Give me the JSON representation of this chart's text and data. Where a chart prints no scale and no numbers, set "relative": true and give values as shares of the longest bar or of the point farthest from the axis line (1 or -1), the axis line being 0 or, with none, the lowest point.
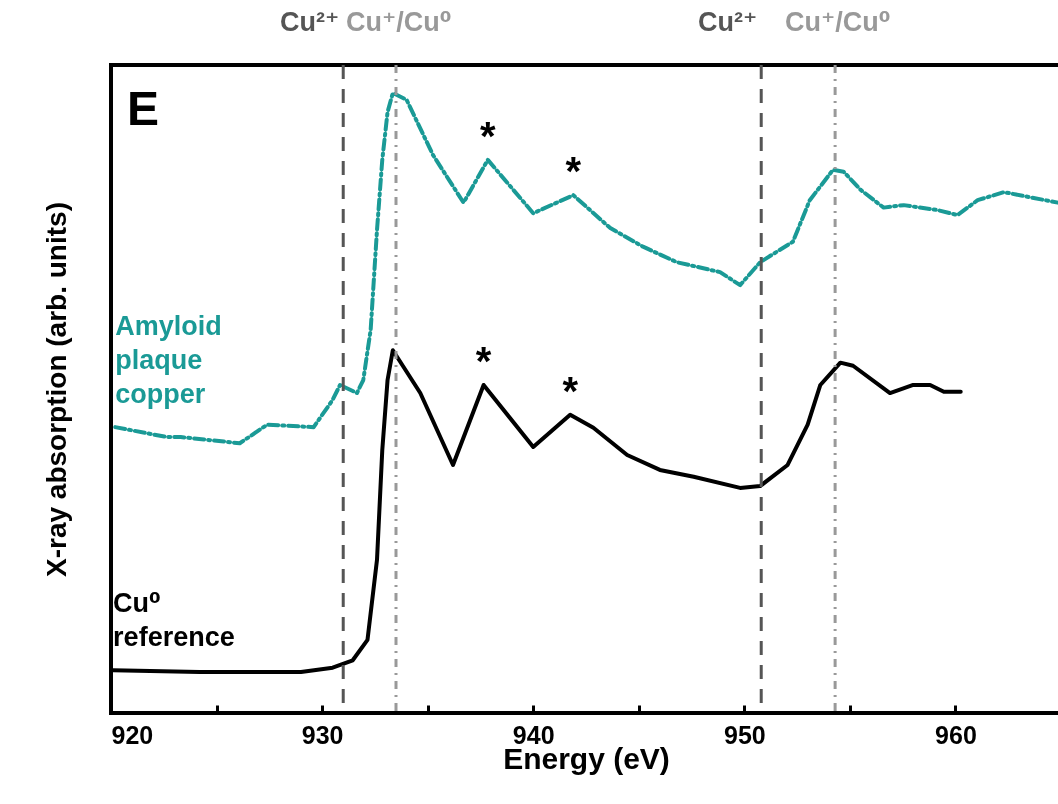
{
  "chart_data": {
    "type": "line",
    "xlabel": "Energy (eV)",
    "ylabel": "X-ray absorption (arb. units)",
    "relative": true,
    "legend": false,
    "grid": false,
    "xlim": [
      920,
      965
    ],
    "xticks": [
      920,
      {
        "value": 925,
        "label": null
      },
      930,
      {
        "value": 935,
        "label": null
      },
      940,
      {
        "value": 945,
        "label": null
      },
      950,
      {
        "value": 955,
        "label": null
      },
      960
    ],
    "series": [
      {
        "name": "Amyloid plaque copper",
        "color": "#1a9a96",
        "line_style": "dashed",
        "x": [
          920.2,
          922.65,
          923.3,
          926.1,
          927.4,
          929.6,
          930.5,
          930.85,
          931.65,
          931.95,
          932.3,
          932.6,
          932.85,
          933.1,
          933.35,
          934.0,
          935.25,
          936.7,
          937.85,
          940.0,
          941.9,
          943.65,
          945.2,
          946.8,
          948.85,
          949.8,
          950.75,
          952.3,
          953.1,
          954.2,
          954.7,
          955.5,
          956.6,
          957.55,
          959.15,
          960.1,
          961.05,
          962.3,
          964.85
        ],
        "values": [
          0.461,
          0.445,
          0.445,
          0.435,
          0.465,
          0.461,
          0.505,
          0.529,
          0.516,
          0.537,
          0.618,
          0.779,
          0.892,
          0.969,
          1.0,
          0.989,
          0.9,
          0.823,
          0.892,
          0.806,
          0.835,
          0.782,
          0.752,
          0.727,
          0.711,
          0.69,
          0.727,
          0.76,
          0.827,
          0.876,
          0.873,
          0.844,
          0.815,
          0.819,
          0.811,
          0.803,
          0.827,
          0.84,
          0.823
        ]
      },
      {
        "name": "Cu⁰ reference",
        "color": "#000000",
        "line_style": "solid",
        "x": [
          920.1,
          924.2,
          929.0,
          930.5,
          931.45,
          932.15,
          932.6,
          932.85,
          933.1,
          933.35,
          934.65,
          936.2,
          937.65,
          940.0,
          941.75,
          942.85,
          944.45,
          946.0,
          947.6,
          949.8,
          950.75,
          952.05,
          953.0,
          953.6,
          954.55,
          955.15,
          956.9,
          958.0,
          958.8,
          959.45,
          960.25
        ],
        "values": [
          0.069,
          0.066,
          0.066,
          0.073,
          0.085,
          0.118,
          0.247,
          0.424,
          0.537,
          0.585,
          0.516,
          0.4,
          0.529,
          0.429,
          0.481,
          0.46,
          0.416,
          0.392,
          0.381,
          0.363,
          0.366,
          0.4,
          0.465,
          0.529,
          0.565,
          0.56,
          0.516,
          0.529,
          0.529,
          0.518,
          0.518
        ]
      }
    ],
    "ref_lines": [
      {
        "axis": "x",
        "value": 931.0,
        "label": "Cu²⁺",
        "color": "#555555",
        "line_style": "dashed"
      },
      {
        "axis": "x",
        "value": 933.5,
        "label": "Cu⁺/Cu⁰",
        "color": "#999999",
        "line_style": "dashdot"
      },
      {
        "axis": "x",
        "value": 950.8,
        "label": "Cu²⁺",
        "color": "#555555",
        "line_style": "dashed"
      },
      {
        "axis": "x",
        "value": 954.3,
        "label": "Cu⁺/Cu⁰",
        "color": "#999999",
        "line_style": "dashdot"
      }
    ],
    "annotations": [
      "E",
      {
        "text": "*",
        "x": 937.85,
        "y": 0.892
      },
      {
        "text": "*",
        "x": 941.9,
        "y": 0.835
      },
      {
        "text": "*",
        "x": 937.65,
        "y": 0.529
      },
      {
        "text": "*",
        "x": 941.75,
        "y": 0.481
      }
    ]
  }
}
